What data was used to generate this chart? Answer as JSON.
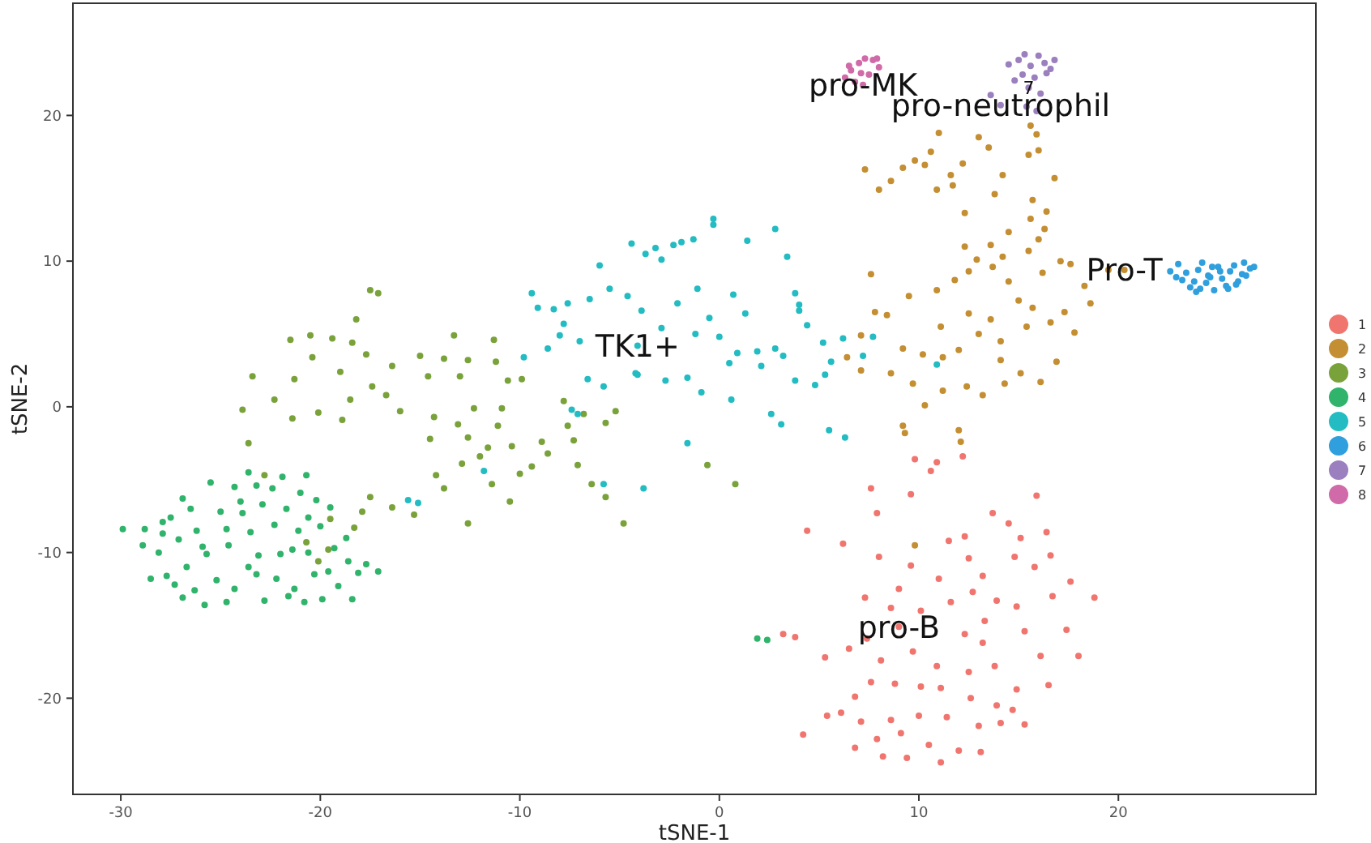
{
  "chart_data": {
    "type": "scatter",
    "xlabel": "tSNE-1",
    "ylabel": "tSNE-2",
    "xlim": [
      -32.4,
      29.9
    ],
    "ylim": [
      -26.6,
      27.7
    ],
    "xticks": [
      -30,
      -20,
      -10,
      0,
      10,
      20
    ],
    "yticks": [
      -20,
      -10,
      0,
      10,
      20
    ],
    "grid": false,
    "legend": "right",
    "marker": "circle",
    "annotations": [
      {
        "text": "pro-MK",
        "x": 7.2,
        "y": 22.1
      },
      {
        "text": "7",
        "x": 15.5,
        "y": 21.9
      },
      {
        "text": "pro-neutrophil",
        "x": 14.1,
        "y": 20.7
      },
      {
        "text": "Pro-T",
        "x": 20.3,
        "y": 9.4
      },
      {
        "text": "TK1+",
        "x": -4.1,
        "y": 4.2
      },
      {
        "text": "pro-B",
        "x": 9.0,
        "y": -15.1
      }
    ],
    "series": [
      {
        "name": "1",
        "color": "#f0756f",
        "x": [
          9.8,
          10.9,
          12.2,
          10.6,
          9.6,
          7.9,
          7.6,
          4.4,
          6.2,
          8.0,
          11.5,
          13.7,
          15.9,
          14.5,
          16.4,
          12.3,
          13.2,
          12.5,
          14.8,
          15.8,
          16.6,
          11.0,
          9.0,
          7.3,
          8.6,
          10.1,
          11.6,
          13.9,
          14.9,
          16.7,
          18.8,
          17.4,
          15.3,
          13.3,
          12.3,
          9.0,
          7.4,
          5.3,
          3.8,
          3.2,
          6.5,
          9.7,
          13.2,
          16.1,
          18.0,
          16.5,
          14.9,
          13.9,
          12.6,
          11.1,
          10.1,
          8.8,
          7.6,
          6.8,
          6.1,
          5.4,
          4.2,
          7.1,
          8.6,
          10.0,
          11.4,
          13.0,
          14.1,
          15.3,
          9.1,
          7.9,
          6.8,
          10.5,
          12.0,
          8.2,
          9.4,
          11.1,
          13.1,
          14.7,
          10.9,
          12.5,
          8.1,
          17.6,
          12.7,
          9.6,
          15.1,
          13.8
        ],
        "values": [
          -3.6,
          -3.8,
          -3.4,
          -4.4,
          -6.0,
          -7.3,
          -5.6,
          -8.5,
          -9.4,
          -10.3,
          -9.2,
          -7.3,
          -6.1,
          -8.0,
          -8.6,
          -8.9,
          -11.6,
          -10.4,
          -10.3,
          -11.0,
          -10.2,
          -11.8,
          -12.5,
          -13.1,
          -13.8,
          -14.0,
          -13.4,
          -13.3,
          -13.7,
          -13.0,
          -13.1,
          -15.3,
          -15.4,
          -14.7,
          -15.6,
          -15.1,
          -15.9,
          -17.2,
          -15.8,
          -15.6,
          -16.6,
          -16.8,
          -16.2,
          -17.1,
          -17.1,
          -19.1,
          -19.4,
          -20.5,
          -20.0,
          -19.3,
          -19.2,
          -19.0,
          -18.9,
          -19.9,
          -21.0,
          -21.2,
          -22.5,
          -21.6,
          -21.5,
          -21.2,
          -21.3,
          -21.9,
          -21.7,
          -21.8,
          -22.4,
          -22.8,
          -23.4,
          -23.2,
          -23.6,
          -24.0,
          -24.1,
          -24.4,
          -23.7,
          -20.8,
          -17.8,
          -18.2,
          -17.4,
          -12.0,
          -12.7,
          -10.9,
          -9.0,
          -17.8
        ]
      },
      {
        "name": "2",
        "color": "#c48f32",
        "x": [
          15.6,
          15.9,
          16.0,
          15.5,
          13.5,
          12.2,
          11.6,
          10.6,
          10.3,
          9.2,
          8.6,
          7.3,
          8.0,
          9.8,
          10.9,
          11.7,
          12.3,
          13.8,
          14.5,
          15.6,
          16.0,
          16.4,
          15.7,
          16.3,
          12.3,
          12.9,
          13.6,
          14.2,
          15.5,
          17.1,
          11.8,
          12.5,
          13.7,
          14.5,
          15.0,
          15.7,
          16.2,
          17.6,
          7.6,
          10.9,
          9.5,
          8.4,
          9.2,
          10.2,
          11.2,
          11.1,
          12.5,
          13.0,
          13.6,
          14.1,
          15.4,
          16.6,
          17.3,
          18.6,
          18.3,
          7.8,
          7.1,
          6.4,
          7.1,
          8.6,
          9.7,
          10.3,
          11.2,
          12.4,
          13.2,
          14.3,
          15.1,
          16.1,
          16.9,
          14.1,
          12.0,
          17.8,
          19.5,
          20.3,
          9.2,
          9.3,
          12.0,
          12.1,
          9.8,
          16.8,
          14.2,
          13.0,
          11.0
        ],
        "values": [
          19.3,
          18.7,
          17.6,
          17.3,
          17.8,
          16.7,
          15.9,
          17.5,
          16.6,
          16.4,
          15.5,
          16.3,
          14.9,
          16.9,
          14.9,
          15.2,
          13.3,
          14.6,
          12.0,
          12.9,
          11.5,
          13.4,
          14.2,
          12.2,
          11.0,
          10.1,
          11.1,
          10.3,
          10.7,
          10.0,
          8.7,
          9.3,
          9.6,
          8.6,
          7.3,
          6.8,
          9.2,
          9.8,
          9.1,
          8.0,
          7.6,
          6.3,
          4.0,
          3.6,
          3.4,
          5.5,
          6.4,
          5.0,
          6.0,
          4.5,
          5.5,
          5.8,
          6.5,
          7.1,
          8.3,
          6.5,
          4.9,
          3.4,
          2.5,
          2.3,
          1.6,
          0.1,
          1.1,
          1.4,
          0.8,
          1.6,
          2.3,
          1.7,
          3.1,
          3.2,
          3.9,
          5.1,
          9.4,
          9.4,
          -1.3,
          -1.8,
          -1.6,
          -2.4,
          -9.5,
          15.7,
          15.9,
          18.5,
          18.8
        ]
      },
      {
        "name": "3",
        "color": "#7aa23a",
        "x": [
          -18.2,
          -17.5,
          -17.1,
          -21.5,
          -20.5,
          -19.4,
          -18.4,
          -17.7,
          -20.4,
          -16.4,
          -15.0,
          -13.8,
          -13.0,
          -12.6,
          -11.2,
          -10.6,
          -9.9,
          -14.6,
          -19.0,
          -21.3,
          -23.4,
          -22.3,
          -23.9,
          -21.4,
          -20.1,
          -18.5,
          -17.4,
          -16.7,
          -18.9,
          -16.0,
          -14.3,
          -12.3,
          -11.1,
          -10.9,
          -13.1,
          -14.5,
          -12.6,
          -11.6,
          -10.4,
          -8.9,
          -9.4,
          -10.0,
          -12.0,
          -12.9,
          -14.2,
          -13.8,
          -11.4,
          -10.5,
          -8.6,
          -7.3,
          -7.1,
          -6.4,
          -5.7,
          -7.6,
          -6.8,
          -7.8,
          -5.7,
          -5.2,
          -23.6,
          -22.8,
          -16.4,
          -17.5,
          -17.9,
          -19.5,
          -20.7,
          -19.6,
          -20.1,
          -18.3,
          -15.3,
          -12.6,
          -4.8,
          -0.6,
          0.8,
          -11.3,
          -13.3
        ],
        "values": [
          6.0,
          8.0,
          7.8,
          4.6,
          4.9,
          4.7,
          4.4,
          3.6,
          3.4,
          2.8,
          3.5,
          3.3,
          2.1,
          3.2,
          3.1,
          1.8,
          1.9,
          2.1,
          2.4,
          1.9,
          2.1,
          0.5,
          -0.2,
          -0.8,
          -0.4,
          0.5,
          1.4,
          0.8,
          -0.9,
          -0.3,
          -0.7,
          -0.1,
          -1.3,
          -0.1,
          -1.2,
          -2.2,
          -2.1,
          -2.8,
          -2.7,
          -2.4,
          -4.1,
          -4.6,
          -3.4,
          -3.9,
          -4.7,
          -5.6,
          -5.3,
          -6.5,
          -3.2,
          -2.3,
          -4.0,
          -5.3,
          -6.2,
          -1.3,
          -0.5,
          0.4,
          -1.1,
          -0.3,
          -2.5,
          -4.7,
          -6.9,
          -6.2,
          -7.2,
          -7.7,
          -9.3,
          -9.8,
          -10.6,
          -8.3,
          -7.4,
          -8.0,
          -8.0,
          -4.0,
          -5.3,
          4.6,
          4.9
        ]
      },
      {
        "name": "4",
        "color": "#30b36b",
        "x": [
          -28.8,
          -27.5,
          -26.9,
          -25.5,
          -24.3,
          -23.6,
          -22.4,
          -21.0,
          -20.7,
          -19.5,
          -28.1,
          -27.7,
          -26.7,
          -25.7,
          -24.6,
          -23.5,
          -22.3,
          -21.1,
          -20.0,
          -19.3,
          -18.6,
          -17.7,
          -26.2,
          -25.0,
          -23.9,
          -22.9,
          -21.7,
          -20.6,
          -27.1,
          -26.3,
          -25.2,
          -24.3,
          -23.2,
          -22.2,
          -21.3,
          -20.3,
          -19.1,
          -18.4,
          -27.3,
          -28.5,
          -29.9,
          -28.9,
          -27.9,
          -25.9,
          -24.7,
          -23.1,
          -22.0,
          -21.4,
          -20.6,
          -19.6,
          -18.1,
          -17.1,
          -24.7,
          -23.6,
          -25.8,
          -26.9,
          -22.8,
          -21.6,
          -20.8,
          -19.9,
          -24.0,
          -26.5,
          -27.9,
          -21.9,
          -23.2,
          -20.2,
          -18.7,
          1.9,
          2.4
        ],
        "values": [
          -8.4,
          -7.6,
          -6.3,
          -5.2,
          -5.5,
          -4.5,
          -5.6,
          -5.9,
          -4.7,
          -6.9,
          -10.0,
          -11.6,
          -11.0,
          -10.1,
          -9.5,
          -8.6,
          -8.1,
          -8.5,
          -8.2,
          -9.7,
          -10.6,
          -10.8,
          -8.5,
          -7.2,
          -7.3,
          -6.7,
          -7.0,
          -7.6,
          -9.1,
          -12.6,
          -11.9,
          -12.5,
          -11.5,
          -11.8,
          -12.5,
          -11.5,
          -12.3,
          -13.2,
          -12.2,
          -11.8,
          -8.4,
          -9.5,
          -8.7,
          -9.6,
          -8.4,
          -10.2,
          -10.1,
          -9.8,
          -10.0,
          -11.3,
          -11.4,
          -11.3,
          -13.4,
          -11.0,
          -13.6,
          -13.1,
          -13.3,
          -13.0,
          -13.4,
          -13.2,
          -6.5,
          -7.0,
          -7.9,
          -4.8,
          -5.4,
          -6.4,
          -9.0,
          -15.9,
          -16.0
        ]
      },
      {
        "name": "5",
        "color": "#22bcc2",
        "x": [
          -9.4,
          -8.3,
          -9.1,
          -7.6,
          -6.5,
          -7.8,
          -8.6,
          -8.0,
          -7.0,
          -9.8,
          -5.5,
          -6.0,
          -4.4,
          -3.7,
          -3.2,
          -2.9,
          -2.3,
          -1.9,
          -1.3,
          -0.3,
          -0.3,
          1.4,
          2.8,
          3.4,
          -4.6,
          -3.9,
          -2.1,
          -1.1,
          0.7,
          1.3,
          -0.5,
          -2.9,
          -4.1,
          -1.2,
          0.0,
          0.9,
          1.9,
          4.4,
          4.0,
          3.8,
          4.0,
          2.8,
          3.2,
          5.2,
          6.2,
          -6.6,
          -5.8,
          -4.2,
          -4.1,
          -2.7,
          -1.6,
          -0.9,
          0.5,
          2.1,
          3.8,
          4.8,
          5.3,
          5.6,
          0.6,
          2.6,
          3.1,
          7.2,
          7.7,
          -7.1,
          -7.4,
          -5.8,
          -1.6,
          5.5,
          6.3,
          10.9,
          -11.8,
          -15.6,
          -15.1,
          -3.8
        ],
        "values": [
          7.8,
          6.7,
          6.8,
          7.1,
          7.4,
          5.7,
          4.0,
          4.9,
          4.5,
          3.4,
          8.1,
          9.7,
          11.2,
          10.5,
          10.9,
          10.1,
          11.1,
          11.3,
          11.5,
          12.9,
          12.5,
          11.4,
          12.2,
          10.3,
          7.6,
          6.6,
          7.1,
          8.1,
          7.7,
          6.4,
          6.1,
          5.4,
          4.2,
          5.0,
          4.8,
          3.7,
          3.8,
          5.6,
          6.6,
          7.8,
          7.0,
          4.0,
          3.5,
          4.4,
          4.7,
          1.9,
          1.4,
          2.3,
          2.2,
          1.8,
          2.0,
          1.0,
          3.0,
          2.8,
          1.8,
          1.5,
          2.2,
          3.1,
          0.5,
          -0.5,
          -1.2,
          3.5,
          4.8,
          -0.5,
          -0.2,
          -5.3,
          -2.5,
          -1.6,
          -2.1,
          2.9,
          -4.4,
          -6.4,
          -6.6,
          -5.6
        ]
      },
      {
        "name": "6",
        "color": "#2f9fdd",
        "x": [
          22.6,
          23.0,
          23.4,
          23.8,
          24.2,
          24.6,
          25.0,
          25.4,
          25.8,
          26.2,
          26.6,
          23.2,
          23.6,
          24.0,
          24.4,
          24.8,
          25.2,
          25.6,
          26.0,
          26.4,
          23.9,
          24.7,
          25.5,
          26.3,
          22.9,
          24.1,
          25.1,
          25.9,
          26.8,
          24.5
        ],
        "values": [
          9.3,
          9.8,
          9.2,
          8.6,
          9.9,
          8.9,
          9.6,
          8.3,
          9.7,
          9.1,
          9.5,
          8.7,
          8.2,
          9.4,
          8.5,
          8.0,
          8.8,
          9.3,
          8.6,
          9.0,
          7.9,
          9.6,
          8.1,
          9.9,
          8.9,
          8.1,
          9.3,
          8.4,
          9.6,
          9.0
        ]
      },
      {
        "name": "7",
        "color": "#9b7fbe",
        "x": [
          14.5,
          15.0,
          15.3,
          15.6,
          16.0,
          16.3,
          16.6,
          15.2,
          15.8,
          16.4,
          14.8,
          15.5,
          16.1,
          13.6,
          14.1,
          15.9,
          15.4,
          16.8
        ],
        "values": [
          23.5,
          23.8,
          24.2,
          23.4,
          24.1,
          23.6,
          23.2,
          22.8,
          22.6,
          22.9,
          22.4,
          21.9,
          21.5,
          21.4,
          20.7,
          20.3,
          20.6,
          23.8
        ]
      },
      {
        "name": "8",
        "color": "#d06aa8",
        "x": [
          6.3,
          6.6,
          7.0,
          7.3,
          7.7,
          8.0,
          6.8,
          7.2,
          7.5,
          6.5,
          7.9,
          7.1
        ],
        "values": [
          22.6,
          23.1,
          23.6,
          23.9,
          23.8,
          23.3,
          22.3,
          22.1,
          22.8,
          23.4,
          23.9,
          22.9
        ]
      }
    ]
  }
}
